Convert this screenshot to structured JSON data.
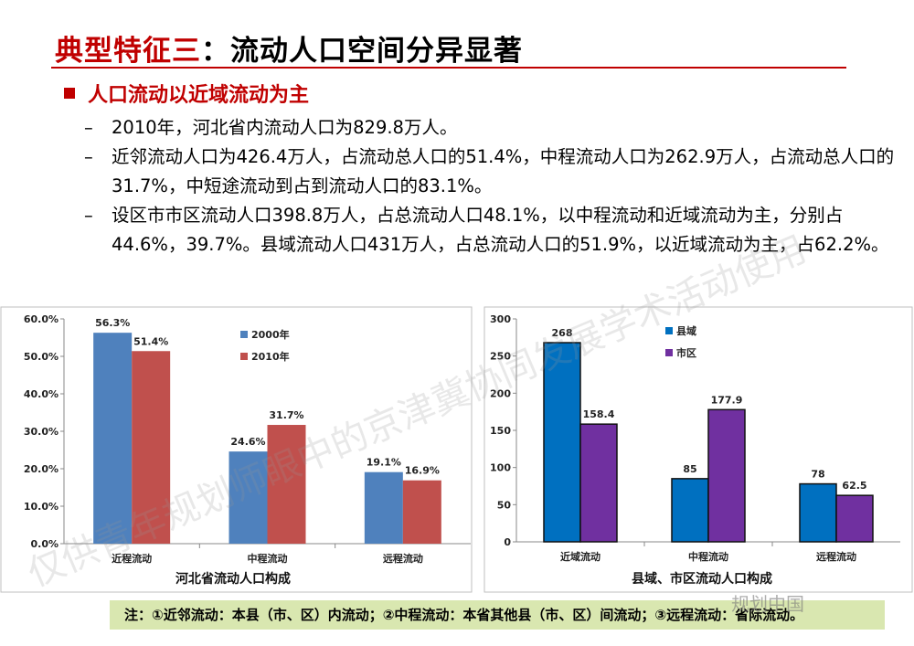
{
  "header": {
    "title_red": "典型特征三",
    "title_rest": "：流动人口空间分异显著",
    "subtitle": "人口流动以近域流动为主"
  },
  "bullets": [
    "2010年，河北省内流动人口为829.8万人。",
    "近邻流动人口为426.4万人，占流动总人口的51.4%，中程流动人口为262.9万人，占流动总人口的31.7%，中短途流动到占到流动人口的83.1%。",
    "设区市市区流动人口398.8万人，占总流动人口48.1%，以中程流动和近域流动为主，分别占44.6%，39.7%。县域流动人口431万人，占总流动人口的51.9%，以近域流动为主，占62.2%。"
  ],
  "footnote": "注：①近邻流动：本县（市、区）内流动；②中程流动：本省其他县（市、区）间流动；③远程流动：省际流动。",
  "watermark": "仅供青年规划师眼中的京津冀协同发展学术活动使用",
  "brand": "规划中国",
  "chart_data": [
    {
      "type": "bar",
      "title": "河北省流动人口构成",
      "categories": [
        "近程流动",
        "中程流动",
        "远程流动"
      ],
      "series": [
        {
          "name": "2000年",
          "values": [
            56.3,
            24.6,
            19.1
          ],
          "labels": [
            "56.3%",
            "24.6%",
            "19.1%"
          ],
          "color": "#4f81bd"
        },
        {
          "name": "2010年",
          "values": [
            51.4,
            31.7,
            16.9
          ],
          "labels": [
            "51.4%",
            "31.7%",
            "16.9%"
          ],
          "color": "#c0504d"
        }
      ],
      "yticks": [
        "0.0%",
        "10.0%",
        "20.0%",
        "30.0%",
        "40.0%",
        "50.0%",
        "60.0%"
      ],
      "ylim": [
        0,
        60
      ],
      "legend": "top-center",
      "grid": false
    },
    {
      "type": "bar",
      "title": "县域、市区流动人口构成",
      "categories": [
        "近域流动",
        "中程流动",
        "远程流动"
      ],
      "series": [
        {
          "name": "县域",
          "values": [
            268,
            85,
            78
          ],
          "labels": [
            "268",
            "85",
            "78"
          ],
          "color": "#0070c0"
        },
        {
          "name": "市区",
          "values": [
            158.4,
            177.9,
            62.5
          ],
          "labels": [
            "158.4",
            "177.9",
            "62.5"
          ],
          "color": "#7030a0"
        }
      ],
      "yticks": [
        "0",
        "50",
        "100",
        "150",
        "200",
        "250",
        "300"
      ],
      "ylim": [
        0,
        300
      ],
      "legend": "top-center",
      "grid": false
    }
  ]
}
